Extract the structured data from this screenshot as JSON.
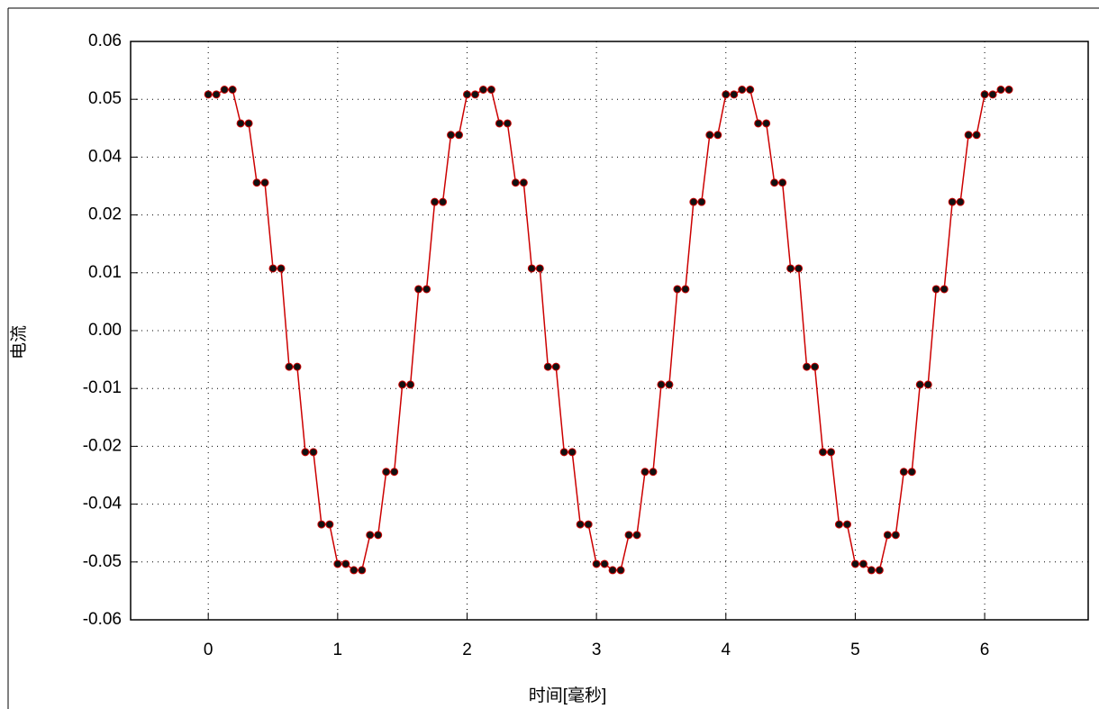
{
  "chart_data": {
    "type": "line",
    "xlabel": "时间[毫秒]",
    "ylabel": "电流",
    "xlim": [
      -0.6,
      6.8
    ],
    "xticks": [
      0,
      1,
      2,
      3,
      4,
      5,
      6
    ],
    "ylim": [
      -0.06,
      0.06
    ],
    "yticks": [
      {
        "value": 0.06,
        "label": "0.06"
      },
      {
        "value": 0.048,
        "label": "0.05"
      },
      {
        "value": 0.036,
        "label": "0.04"
      },
      {
        "value": 0.024,
        "label": "0.02"
      },
      {
        "value": 0.012,
        "label": "0.01"
      },
      {
        "value": 0,
        "label": "0.00"
      },
      {
        "value": -0.012,
        "label": "-0.01"
      },
      {
        "value": -0.024,
        "label": "-0.02"
      },
      {
        "value": -0.036,
        "label": "-0.04"
      },
      {
        "value": -0.048,
        "label": "-0.05"
      },
      {
        "value": -0.06,
        "label": "-0.06"
      }
    ],
    "grid": true,
    "x": [
      0,
      0.0625,
      0.125,
      0.1875,
      0.25,
      0.3125,
      0.375,
      0.4375,
      0.5,
      0.5625,
      0.625,
      0.6875,
      0.75,
      0.8125,
      0.875,
      0.9375,
      1,
      1.0625,
      1.125,
      1.1875,
      1.25,
      1.3125,
      1.375,
      1.4375,
      1.5,
      1.5625,
      1.625,
      1.6875,
      1.75,
      1.8125,
      1.875,
      1.9375,
      2,
      2.0625,
      2.125,
      2.1875,
      2.25,
      2.3125,
      2.375,
      2.4375,
      2.5,
      2.5625,
      2.625,
      2.6875,
      2.75,
      2.8125,
      2.875,
      2.9375,
      3,
      3.0625,
      3.125,
      3.1875,
      3.25,
      3.3125,
      3.375,
      3.4375,
      3.5,
      3.5625,
      3.625,
      3.6875,
      3.75,
      3.8125,
      3.875,
      3.9375,
      4,
      4.0625,
      4.125,
      4.1875,
      4.25,
      4.3125,
      4.375,
      4.4375,
      4.5,
      4.5625,
      4.625,
      4.6875,
      4.75,
      4.8125,
      4.875,
      4.9375,
      5,
      5.0625,
      5.125,
      5.1875,
      5.25,
      5.3125,
      5.375,
      5.4375,
      5.5,
      5.5625,
      5.625,
      5.6875,
      5.75,
      5.8125,
      5.875,
      5.9375,
      6,
      6.0625,
      6.125,
      6.1875
    ],
    "series": [
      {
        "color": "#cc0000",
        "marker_color": "#111111",
        "values": [
          0.049,
          0.049,
          0.05,
          0.05,
          0.043,
          0.043,
          0.0307,
          0.0307,
          0.0129,
          0.0129,
          -0.0075,
          -0.0075,
          -0.0252,
          -0.0252,
          -0.0402,
          -0.0402,
          -0.0484,
          -0.0484,
          -0.0497,
          -0.0497,
          -0.0424,
          -0.0424,
          -0.0293,
          -0.0293,
          -0.0112,
          -0.0112,
          0.0086,
          0.0086,
          0.0267,
          0.0267,
          0.0406,
          0.0406,
          0.049,
          0.049,
          0.05,
          0.05,
          0.043,
          0.043,
          0.0307,
          0.0307,
          0.0129,
          0.0129,
          -0.0075,
          -0.0075,
          -0.0252,
          -0.0252,
          -0.0402,
          -0.0402,
          -0.0484,
          -0.0484,
          -0.0497,
          -0.0497,
          -0.0424,
          -0.0424,
          -0.0293,
          -0.0293,
          -0.0112,
          -0.0112,
          0.0086,
          0.0086,
          0.0267,
          0.0267,
          0.0406,
          0.0406,
          0.049,
          0.049,
          0.05,
          0.05,
          0.043,
          0.043,
          0.0307,
          0.0307,
          0.0129,
          0.0129,
          -0.0075,
          -0.0075,
          -0.0252,
          -0.0252,
          -0.0402,
          -0.0402,
          -0.0484,
          -0.0484,
          -0.0497,
          -0.0497,
          -0.0424,
          -0.0424,
          -0.0293,
          -0.0293,
          -0.0112,
          -0.0112,
          0.0086,
          0.0086,
          0.0267,
          0.0267,
          0.0406,
          0.0406,
          0.049,
          0.049,
          0.05,
          0.05
        ]
      }
    ]
  }
}
